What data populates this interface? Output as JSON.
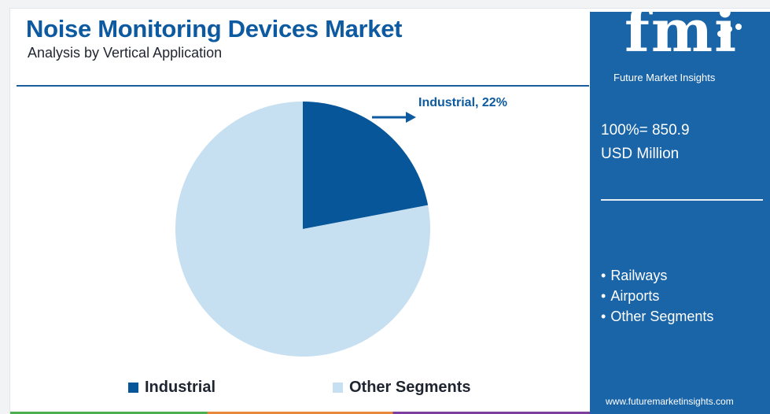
{
  "title": "Noise Monitoring Devices Market",
  "subtitle": "Analysis by Vertical Application",
  "colors": {
    "industrial": "#07569a",
    "other_segments": "#c6e0f1",
    "sidebar": "#1a64a8",
    "accent": "#0d5aa0"
  },
  "chart_data": {
    "type": "pie",
    "title": "Noise Monitoring Devices Market",
    "subtitle": "Analysis by Vertical Application",
    "categories": [
      "Industrial",
      "Other Segments"
    ],
    "values": [
      22,
      78
    ],
    "unit": "%",
    "annotation": "Industrial, 22%",
    "legend": [
      "Industrial",
      "Other Segments"
    ],
    "legend_placement": "bottom"
  },
  "sidebar": {
    "logo": "fmi",
    "logo_caption": "Future Market Insights",
    "total_line1": "100%= 850.9",
    "total_line2": "USD Million",
    "segments": [
      "Railways",
      "Airports",
      "Other Segments"
    ],
    "website": "www.futuremarketinsights.com"
  }
}
